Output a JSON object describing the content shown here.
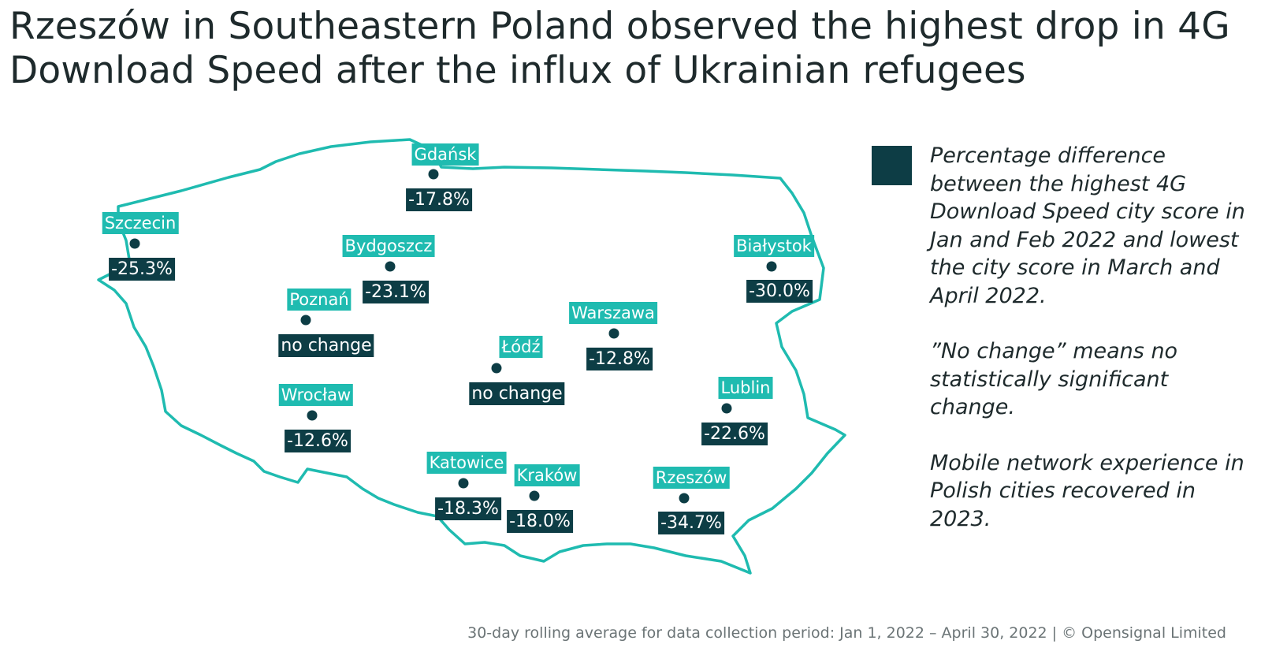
{
  "title": "Rzeszów in Southeastern Poland observed the highest drop in 4G Download Speed after the influx of Ukrainian refugees",
  "colors": {
    "outline": "#1fbbb0",
    "label_bg": "#1fbbb0",
    "value_bg": "#0d3d45"
  },
  "cities": [
    {
      "name": "Gdańsk",
      "value": "-17.8%"
    },
    {
      "name": "Szczecin",
      "value": "-25.3%"
    },
    {
      "name": "Bydgoszcz",
      "value": "-23.1%"
    },
    {
      "name": "Białystok",
      "value": "-30.0%"
    },
    {
      "name": "Poznań",
      "value": "no change"
    },
    {
      "name": "Warszawa",
      "value": "-12.8%"
    },
    {
      "name": "Łódź",
      "value": "no change"
    },
    {
      "name": "Wrocław",
      "value": "-12.6%"
    },
    {
      "name": "Lublin",
      "value": "-22.6%"
    },
    {
      "name": "Katowice",
      "value": "-18.3%"
    },
    {
      "name": "Kraków",
      "value": "-18.0%"
    },
    {
      "name": "Rzeszów",
      "value": "-34.7%"
    }
  ],
  "legend": {
    "p1": "Percentage difference between the highest 4G Download Speed city score in Jan and Feb 2022 and lowest the city score in March and April 2022.",
    "p2": "”No change” means no statistically significant change.",
    "p3": "Mobile network experience in Polish cities recovered in 2023."
  },
  "footer": "30-day rolling average for data collection period: Jan 1, 2022 – April 30, 2022 | © Opensignal Limited"
}
